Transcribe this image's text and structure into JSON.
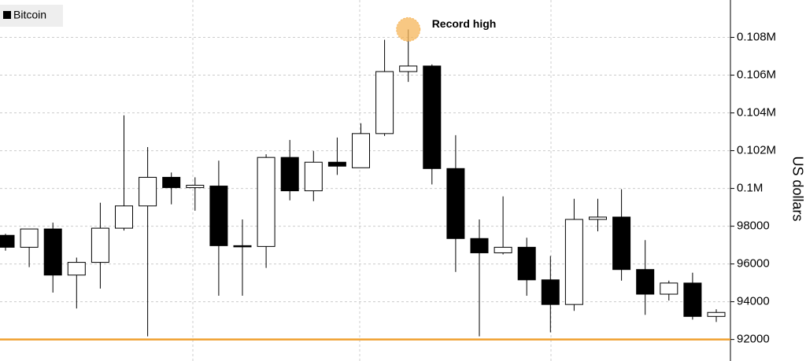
{
  "chart_data": {
    "type": "candlestick",
    "legend": "top-left",
    "grid": true,
    "y_axis_label": "US dollars",
    "y_axis_side": "right",
    "ylim": [
      90860,
      109980
    ],
    "yticks": [
      92000,
      94000,
      96000,
      98000,
      {
        "value": 100000,
        "label": "0.1M"
      },
      {
        "value": 102000,
        "label": "0.102M"
      },
      {
        "value": 104000,
        "label": "0.104M"
      },
      {
        "value": 106000,
        "label": "0.106M"
      },
      {
        "value": 108000,
        "label": "0.108M"
      }
    ],
    "reference_line": {
      "value": 92000,
      "color": "#f0a030"
    },
    "annotation": {
      "text": "Record high",
      "color": "#f5b55a"
    },
    "series": [
      {
        "name": "Bitcoin",
        "up_color": "#ffffff",
        "down_color": "#000000",
        "open": [
          97516,
          96884,
          97853,
          95411,
          96084,
          97895,
          99074,
          100589,
          100042,
          100126,
          96968,
          96926,
          101642,
          99874,
          101389,
          101095,
          102905,
          106189,
          106484,
          101053,
          97347,
          96589,
          96884,
          95158,
          93853,
          98358,
          98484,
          95705,
          94400,
          94989,
          93221
        ],
        "high": [
          97600,
          97853,
          98189,
          96337,
          99242,
          103874,
          102189,
          100842,
          100589,
          101474,
          98358,
          101811,
          102568,
          101979,
          102695,
          103453,
          107874,
          108421,
          106568,
          102821,
          98358,
          99579,
          97389,
          96421,
          99453,
          99453,
          99958,
          97263,
          95116,
          95537,
          93600
        ],
        "low": [
          96700,
          95832,
          94484,
          93642,
          94695,
          97768,
          92168,
          99158,
          98821,
          94316,
          94316,
          95789,
          99368,
          99326,
          100716,
          101095,
          102779,
          105642,
          100211,
          95579,
          92168,
          96505,
          94316,
          92379,
          93516,
          97726,
          95116,
          93305,
          94063,
          93053,
          92926
        ],
        "close": [
          96884,
          97853,
          95411,
          96084,
          97895,
          99074,
          100589,
          100042,
          100168,
          96968,
          96926,
          101642,
          99874,
          101389,
          101179,
          102905,
          106189,
          106484,
          101053,
          97347,
          96589,
          96884,
          95158,
          93853,
          98358,
          98484,
          95705,
          94400,
          94989,
          93221,
          93432
        ]
      }
    ]
  }
}
